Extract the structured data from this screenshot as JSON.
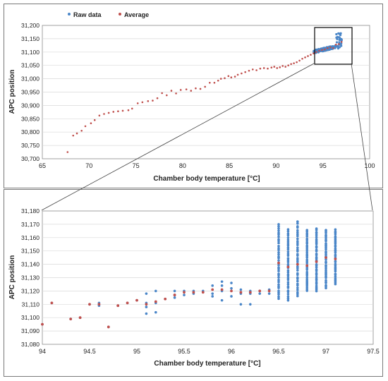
{
  "chart_data": [
    {
      "type": "scatter",
      "xlabel": "Chamber body temperature [°C]",
      "ylabel": "APC position",
      "xlim": [
        65,
        100
      ],
      "ylim": [
        30700,
        31200
      ],
      "x_ticks": [
        "65",
        "70",
        "75",
        "80",
        "85",
        "90",
        "95",
        "100"
      ],
      "y_ticks": [
        "30,700",
        "30,750",
        "30,800",
        "30,850",
        "30,900",
        "30,950",
        "31,000",
        "31,050",
        "31,100",
        "31,150",
        "31,200"
      ],
      "grid": "horizontal",
      "legend_placement": "top-left",
      "series": [
        {
          "name": "Raw data",
          "color": "#4a86c8",
          "x_range": [
            94,
            97.1
          ],
          "y_range": [
            31090,
            31172
          ]
        },
        {
          "name": "Average",
          "color": "#c0504d",
          "x": [
            67.7,
            68.3,
            68.7,
            69.2,
            69.6,
            70.2,
            70.6,
            71.1,
            71.6,
            72.1,
            72.6,
            73.1,
            73.6,
            74.2,
            74.6,
            75.2,
            75.7,
            76.3,
            76.8,
            77.3,
            77.8,
            78.3,
            78.8,
            79.3,
            79.8,
            80.4,
            80.9,
            81.4,
            81.9,
            82.4,
            82.9,
            83.4,
            83.8,
            84.1,
            84.5,
            84.9,
            85.2,
            85.6,
            85.9,
            86.3,
            86.7,
            87.1,
            87.5,
            87.9,
            88.3,
            88.7,
            89.1,
            89.5,
            89.8,
            90.1,
            90.4,
            90.7,
            91.0,
            91.3,
            91.6,
            91.9,
            92.2,
            92.5,
            92.8,
            93.1,
            93.4,
            93.7,
            94.0,
            94.3,
            94.6,
            94.9,
            95.2,
            95.5,
            95.8,
            96.1,
            96.4,
            96.7,
            97.0
          ],
          "y": [
            30725,
            30787,
            30795,
            30805,
            30822,
            30833,
            30845,
            30862,
            30868,
            30872,
            30876,
            30878,
            30880,
            30882,
            30888,
            30908,
            30912,
            30916,
            30918,
            30927,
            30946,
            30938,
            30955,
            30945,
            30958,
            30960,
            30955,
            30964,
            30962,
            30970,
            30985,
            30985,
            30993,
            31000,
            31002,
            31010,
            31005,
            31008,
            31015,
            31020,
            31025,
            31030,
            31035,
            31032,
            31038,
            31040,
            31038,
            31042,
            31045,
            31040,
            31043,
            31048,
            31045,
            31050,
            31055,
            31058,
            31062,
            31068,
            31075,
            31080,
            31085,
            31090,
            31095,
            31100,
            31105,
            31108,
            31110,
            31115,
            31118,
            31115,
            31128,
            31130,
            31138
          ]
        }
      ]
    },
    {
      "type": "scatter",
      "xlabel": "Chamber body temperature [°C]",
      "ylabel": "APC position",
      "xlim": [
        94,
        97.5
      ],
      "ylim": [
        31080,
        31180
      ],
      "x_ticks": [
        "94",
        "94.5",
        "95",
        "95.5",
        "96",
        "96.5",
        "97",
        "97.5"
      ],
      "y_ticks": [
        "31,080",
        "31,090",
        "31,100",
        "31,110",
        "31,120",
        "31,130",
        "31,140",
        "31,150",
        "31,160",
        "31,170",
        "31,180"
      ],
      "grid": "horizontal",
      "series": [
        {
          "name": "Raw data",
          "color": "#4a86c8",
          "x": [
            94.0,
            94.1,
            94.3,
            94.4,
            94.5,
            94.6,
            94.6,
            94.7,
            94.8,
            94.9,
            95.0,
            95.1,
            95.1,
            95.1,
            95.1,
            95.2,
            95.2,
            95.2,
            95.3,
            95.4,
            95.4,
            95.4,
            95.5,
            95.5,
            95.6,
            95.6,
            95.7,
            95.8,
            95.8,
            95.8,
            95.9,
            95.9,
            95.9,
            95.9,
            96.0,
            96.0,
            96.0,
            96.1,
            96.1,
            96.1,
            96.2,
            96.2,
            96.2,
            96.3,
            96.3,
            96.4,
            96.4
          ],
          "y": [
            31095,
            31111,
            31099,
            31100,
            31110,
            31111,
            31109,
            31093,
            31109,
            31111,
            31113,
            31118,
            31111,
            31108,
            31103,
            31120,
            31111,
            31104,
            31114,
            31120,
            31117,
            31115,
            31120,
            31117,
            31120,
            31118,
            31120,
            31124,
            31118,
            31116,
            31127,
            31124,
            31120,
            31113,
            31126,
            31122,
            31116,
            31121,
            31118,
            31110,
            31120,
            31118,
            31110,
            31120,
            31118,
            31121,
            31118
          ],
          "stacks": [
            {
              "x": 96.5,
              "ymin": 31114,
              "ymax": 31170
            },
            {
              "x": 96.6,
              "ymin": 31113,
              "ymax": 31166
            },
            {
              "x": 96.7,
              "ymin": 31116,
              "ymax": 31172
            },
            {
              "x": 96.8,
              "ymin": 31120,
              "ymax": 31166
            },
            {
              "x": 96.9,
              "ymin": 31120,
              "ymax": 31167
            },
            {
              "x": 97.0,
              "ymin": 31122,
              "ymax": 31166
            },
            {
              "x": 97.1,
              "ymin": 31125,
              "ymax": 31166
            }
          ]
        },
        {
          "name": "Average",
          "color": "#c0504d",
          "x": [
            94.0,
            94.1,
            94.3,
            94.4,
            94.5,
            94.6,
            94.7,
            94.8,
            94.9,
            95.0,
            95.1,
            95.2,
            95.3,
            95.4,
            95.5,
            95.6,
            95.7,
            95.8,
            95.9,
            96.0,
            96.1,
            96.2,
            96.3,
            96.4,
            96.5,
            96.6,
            96.7,
            96.8,
            96.9,
            97.0,
            97.1
          ],
          "y": [
            31095,
            31111,
            31099,
            31100,
            31110,
            31110,
            31093,
            31109,
            31111,
            31113,
            31110,
            31112,
            31114,
            31117,
            31119,
            31119,
            31119,
            31121,
            31121,
            31120,
            31119,
            31119,
            31120,
            31120,
            31141,
            31138,
            31140,
            31139,
            31142,
            31145,
            31144
          ]
        }
      ]
    }
  ]
}
